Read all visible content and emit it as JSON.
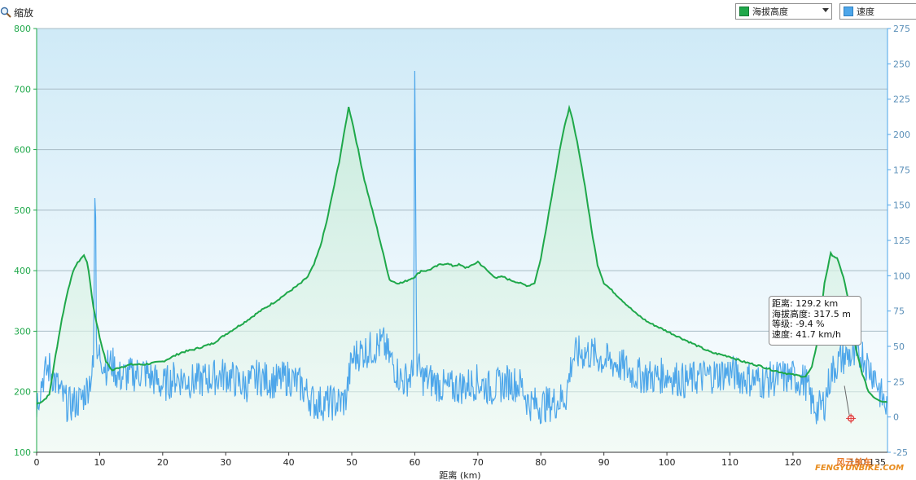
{
  "toolbar": {
    "zoom_label": "缩放",
    "series_select_value": "海拔高度",
    "series2_label": "速度"
  },
  "colors": {
    "elevation": "#1fa84a",
    "speed": "#4da6ea",
    "plot_bg_top": "#d4edf8",
    "plot_bg_bottom": "#ffffff"
  },
  "tooltip": {
    "distance": "距离: 129.2 km",
    "elevation": "海拔高度: 317.5 m",
    "grade": "等级: -9.4 %",
    "speed": "速度: 41.7 km/h"
  },
  "watermark": {
    "text": "FENGYUNBIKE.COM",
    "cn": "风云单车"
  },
  "chart_data": {
    "type": "line",
    "xlabel": "距离 (km)",
    "xlim": [
      0,
      135
    ],
    "x_ticks": [
      0,
      10,
      20,
      30,
      40,
      50,
      60,
      70,
      80,
      90,
      100,
      110,
      120
    ],
    "x_end_labels": [
      "130",
      "135"
    ],
    "y_left": {
      "label": "",
      "ylim": [
        100,
        800
      ],
      "ticks": [
        100,
        200,
        300,
        400,
        500,
        600,
        700,
        800
      ]
    },
    "y_right": {
      "label": "",
      "ylim": [
        -25,
        275
      ],
      "ticks": [
        -25,
        0,
        25,
        50,
        75,
        100,
        125,
        150,
        175,
        200,
        225,
        250,
        275
      ]
    },
    "grid": true,
    "legend": "top-right",
    "series": [
      {
        "name": "海拔高度",
        "axis": "left",
        "x": [
          0,
          1,
          2,
          3,
          4,
          5,
          6,
          7,
          7.5,
          8,
          8.5,
          9,
          10,
          11,
          12,
          13,
          15,
          17,
          20,
          22,
          23,
          25,
          28,
          30,
          33,
          35,
          38,
          40,
          42,
          43,
          44,
          45,
          46,
          47,
          48,
          49,
          49.5,
          50,
          51,
          52,
          54,
          56,
          57,
          58,
          59,
          60,
          61,
          62,
          63,
          64,
          65,
          66,
          67,
          68,
          69,
          70,
          71,
          72,
          73,
          74,
          75,
          76,
          77,
          78,
          79,
          80,
          81,
          82,
          83,
          84,
          84.5,
          85,
          86,
          87,
          88,
          89,
          90,
          91,
          92,
          93,
          95,
          97,
          100,
          102,
          105,
          107,
          110,
          112,
          115,
          117,
          120,
          122,
          123,
          124,
          125,
          126,
          127,
          128,
          129,
          129.2,
          130,
          131,
          132,
          133,
          134,
          135
        ],
        "values": [
          180,
          185,
          195,
          260,
          320,
          370,
          405,
          420,
          425,
          415,
          380,
          340,
          290,
          250,
          235,
          240,
          245,
          245,
          250,
          260,
          265,
          270,
          280,
          295,
          315,
          330,
          350,
          365,
          380,
          390,
          410,
          440,
          480,
          530,
          580,
          640,
          670,
          650,
          600,
          550,
          470,
          385,
          380,
          380,
          385,
          390,
          400,
          400,
          405,
          410,
          412,
          408,
          410,
          405,
          408,
          415,
          405,
          395,
          388,
          390,
          385,
          382,
          378,
          375,
          380,
          420,
          480,
          540,
          600,
          650,
          668,
          650,
          600,
          540,
          470,
          410,
          380,
          370,
          360,
          350,
          330,
          315,
          300,
          290,
          275,
          265,
          258,
          250,
          242,
          235,
          228,
          225,
          240,
          290,
          380,
          428,
          420,
          390,
          340,
          317.5,
          270,
          230,
          200,
          190,
          185,
          183
        ]
      },
      {
        "name": "速度",
        "axis": "right",
        "x": [
          0,
          1,
          2,
          3,
          4,
          5,
          6,
          7,
          8,
          9,
          9.3,
          9.5,
          10,
          11,
          12,
          13,
          15,
          17,
          20,
          22,
          25,
          28,
          30,
          33,
          35,
          38,
          40,
          42,
          44,
          46,
          48,
          49,
          50,
          51,
          53,
          55,
          56,
          58,
          59,
          59.8,
          60,
          60.3,
          61,
          63,
          65,
          68,
          70,
          72,
          75,
          77,
          78,
          80,
          82,
          83,
          84,
          85,
          86,
          88,
          90,
          92,
          95,
          98,
          100,
          103,
          105,
          108,
          110,
          112,
          115,
          118,
          120,
          122,
          123,
          124,
          125,
          126,
          127,
          128,
          129,
          129.2,
          130,
          131,
          132,
          133,
          134,
          135
        ],
        "values": [
          10,
          28,
          35,
          25,
          15,
          8,
          10,
          12,
          20,
          35,
          185,
          40,
          45,
          35,
          38,
          28,
          30,
          32,
          22,
          28,
          25,
          28,
          30,
          22,
          28,
          25,
          28,
          22,
          10,
          10,
          10,
          12,
          40,
          45,
          48,
          52,
          42,
          25,
          28,
          30,
          245,
          40,
          28,
          25,
          20,
          22,
          25,
          20,
          25,
          22,
          10,
          8,
          10,
          12,
          15,
          42,
          45,
          45,
          40,
          38,
          30,
          28,
          30,
          25,
          28,
          30,
          32,
          28,
          25,
          28,
          28,
          25,
          10,
          5,
          10,
          30,
          38,
          42,
          44,
          41.7,
          40,
          45,
          35,
          30,
          15,
          5
        ]
      }
    ]
  }
}
